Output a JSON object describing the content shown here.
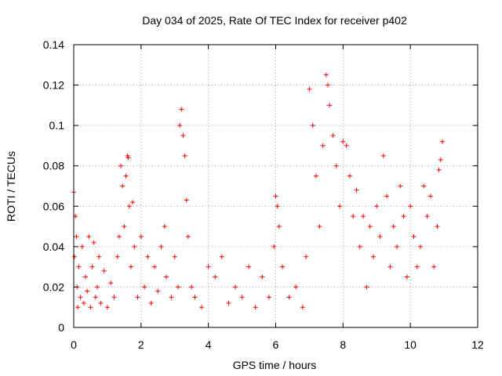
{
  "chart_data": {
    "type": "scatter",
    "title": "Day 034 of 2025, Rate Of TEC Index for receiver p402",
    "xlabel": "GPS time / hours",
    "ylabel": "ROTI / TECUs",
    "xlim": [
      0,
      12
    ],
    "ylim": [
      0,
      0.14
    ],
    "xticks": [
      "0",
      "2",
      "4",
      "6",
      "8",
      "10",
      "12"
    ],
    "yticks": [
      "0",
      "0.02",
      "0.04",
      "0.06",
      "0.08",
      "0.1",
      "0.12",
      "0.14"
    ],
    "grid": true,
    "marker": "+",
    "color": "#ff0000",
    "series": [
      {
        "name": "p402",
        "x": [
          0.0,
          0.02,
          0.05,
          0.08,
          0.1,
          0.12,
          0.15,
          0.2,
          0.25,
          0.3,
          0.35,
          0.4,
          0.45,
          0.5,
          0.55,
          0.6,
          0.65,
          0.7,
          0.75,
          0.8,
          0.9,
          1.0,
          1.1,
          1.2,
          1.3,
          1.35,
          1.4,
          1.45,
          1.5,
          1.55,
          1.6,
          1.62,
          1.65,
          1.7,
          1.75,
          1.8,
          1.9,
          2.0,
          2.1,
          2.2,
          2.3,
          2.4,
          2.5,
          2.6,
          2.7,
          2.75,
          2.9,
          3.0,
          3.1,
          3.15,
          3.2,
          3.25,
          3.3,
          3.35,
          3.4,
          3.5,
          3.6,
          3.8,
          4.0,
          4.2,
          4.4,
          4.6,
          4.8,
          5.0,
          5.2,
          5.4,
          5.6,
          5.8,
          5.95,
          6.0,
          6.05,
          6.1,
          6.2,
          6.4,
          6.6,
          6.8,
          6.9,
          7.0,
          7.1,
          7.2,
          7.3,
          7.4,
          7.5,
          7.55,
          7.6,
          7.7,
          7.8,
          7.9,
          8.0,
          8.1,
          8.2,
          8.3,
          8.4,
          8.5,
          8.6,
          8.7,
          8.8,
          8.9,
          9.0,
          9.1,
          9.2,
          9.3,
          9.4,
          9.5,
          9.6,
          9.7,
          9.8,
          9.9,
          10.0,
          10.1,
          10.2,
          10.3,
          10.4,
          10.5,
          10.6,
          10.7,
          10.8,
          10.85,
          10.9,
          10.95
        ],
        "y": [
          0.067,
          0.035,
          0.055,
          0.045,
          0.02,
          0.01,
          0.03,
          0.015,
          0.04,
          0.012,
          0.025,
          0.018,
          0.045,
          0.01,
          0.03,
          0.042,
          0.015,
          0.02,
          0.035,
          0.012,
          0.028,
          0.01,
          0.022,
          0.015,
          0.035,
          0.045,
          0.08,
          0.07,
          0.05,
          0.075,
          0.085,
          0.084,
          0.06,
          0.03,
          0.062,
          0.04,
          0.015,
          0.045,
          0.02,
          0.035,
          0.012,
          0.03,
          0.018,
          0.04,
          0.05,
          0.025,
          0.015,
          0.035,
          0.02,
          0.1,
          0.108,
          0.095,
          0.085,
          0.063,
          0.045,
          0.02,
          0.015,
          0.01,
          0.03,
          0.025,
          0.035,
          0.012,
          0.02,
          0.015,
          0.03,
          0.01,
          0.025,
          0.015,
          0.04,
          0.065,
          0.06,
          0.05,
          0.03,
          0.015,
          0.02,
          0.01,
          0.035,
          0.118,
          0.1,
          0.075,
          0.05,
          0.09,
          0.125,
          0.12,
          0.11,
          0.095,
          0.08,
          0.06,
          0.092,
          0.09,
          0.075,
          0.055,
          0.068,
          0.04,
          0.055,
          0.02,
          0.05,
          0.035,
          0.06,
          0.045,
          0.085,
          0.065,
          0.03,
          0.05,
          0.04,
          0.07,
          0.055,
          0.025,
          0.06,
          0.045,
          0.03,
          0.04,
          0.07,
          0.055,
          0.065,
          0.03,
          0.05,
          0.078,
          0.083,
          0.092
        ]
      }
    ]
  }
}
